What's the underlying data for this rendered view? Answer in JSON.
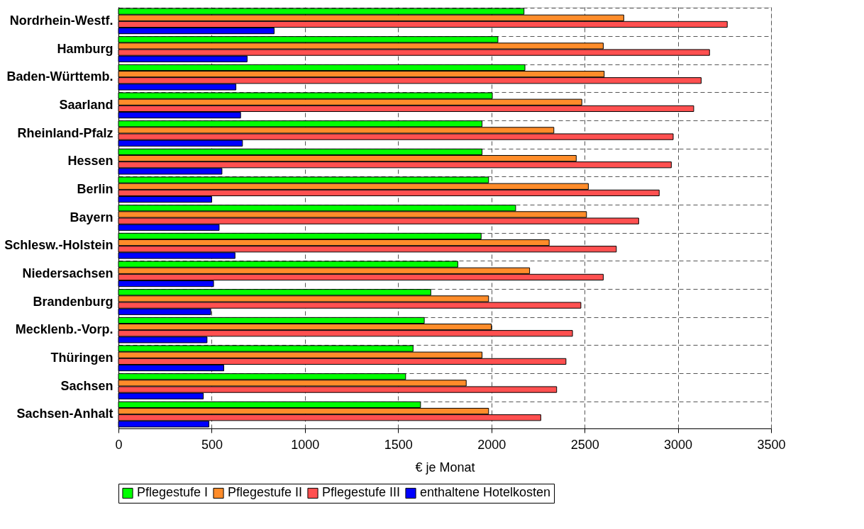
{
  "chart_data": {
    "type": "bar",
    "orientation": "horizontal",
    "xlabel": "€ je Monat",
    "categories": [
      "Nordrhein-Westf.",
      "Hamburg",
      "Baden-Württemb.",
      "Saarland",
      "Rheinland-Pfalz",
      "Hessen",
      "Berlin",
      "Bayern",
      "Schlesw.-Holstein",
      "Niedersachsen",
      "Brandenburg",
      "Mecklenb.-Vorp.",
      "Thüringen",
      "Sachsen",
      "Sachsen-Anhalt"
    ],
    "series": [
      {
        "name": "Pflegestufe I",
        "color": "#00ff00",
        "values": [
          2175,
          2035,
          2180,
          2005,
          1950,
          1950,
          1985,
          2130,
          1945,
          1820,
          1675,
          1640,
          1580,
          1540,
          1620
        ]
      },
      {
        "name": "Pflegestufe II",
        "color": "#ff8c2a",
        "values": [
          2710,
          2600,
          2605,
          2485,
          2335,
          2455,
          2520,
          2510,
          2310,
          2205,
          1985,
          2000,
          1950,
          1865,
          1985
        ]
      },
      {
        "name": "Pflegestufe III",
        "color": "#ff5050",
        "values": [
          3265,
          3170,
          3125,
          3085,
          2975,
          2965,
          2900,
          2790,
          2670,
          2600,
          2480,
          2435,
          2400,
          2350,
          2265
        ]
      },
      {
        "name": "enthaltene Hotelkosten",
        "color": "#0000ff",
        "values": [
          835,
          690,
          630,
          655,
          665,
          555,
          500,
          540,
          625,
          510,
          495,
          475,
          565,
          455,
          485
        ]
      }
    ],
    "xlim": [
      0,
      3500
    ],
    "xticks": [
      0,
      500,
      1000,
      1500,
      2000,
      2500,
      3000,
      3500
    ],
    "grid": true,
    "legend": "bottom"
  }
}
